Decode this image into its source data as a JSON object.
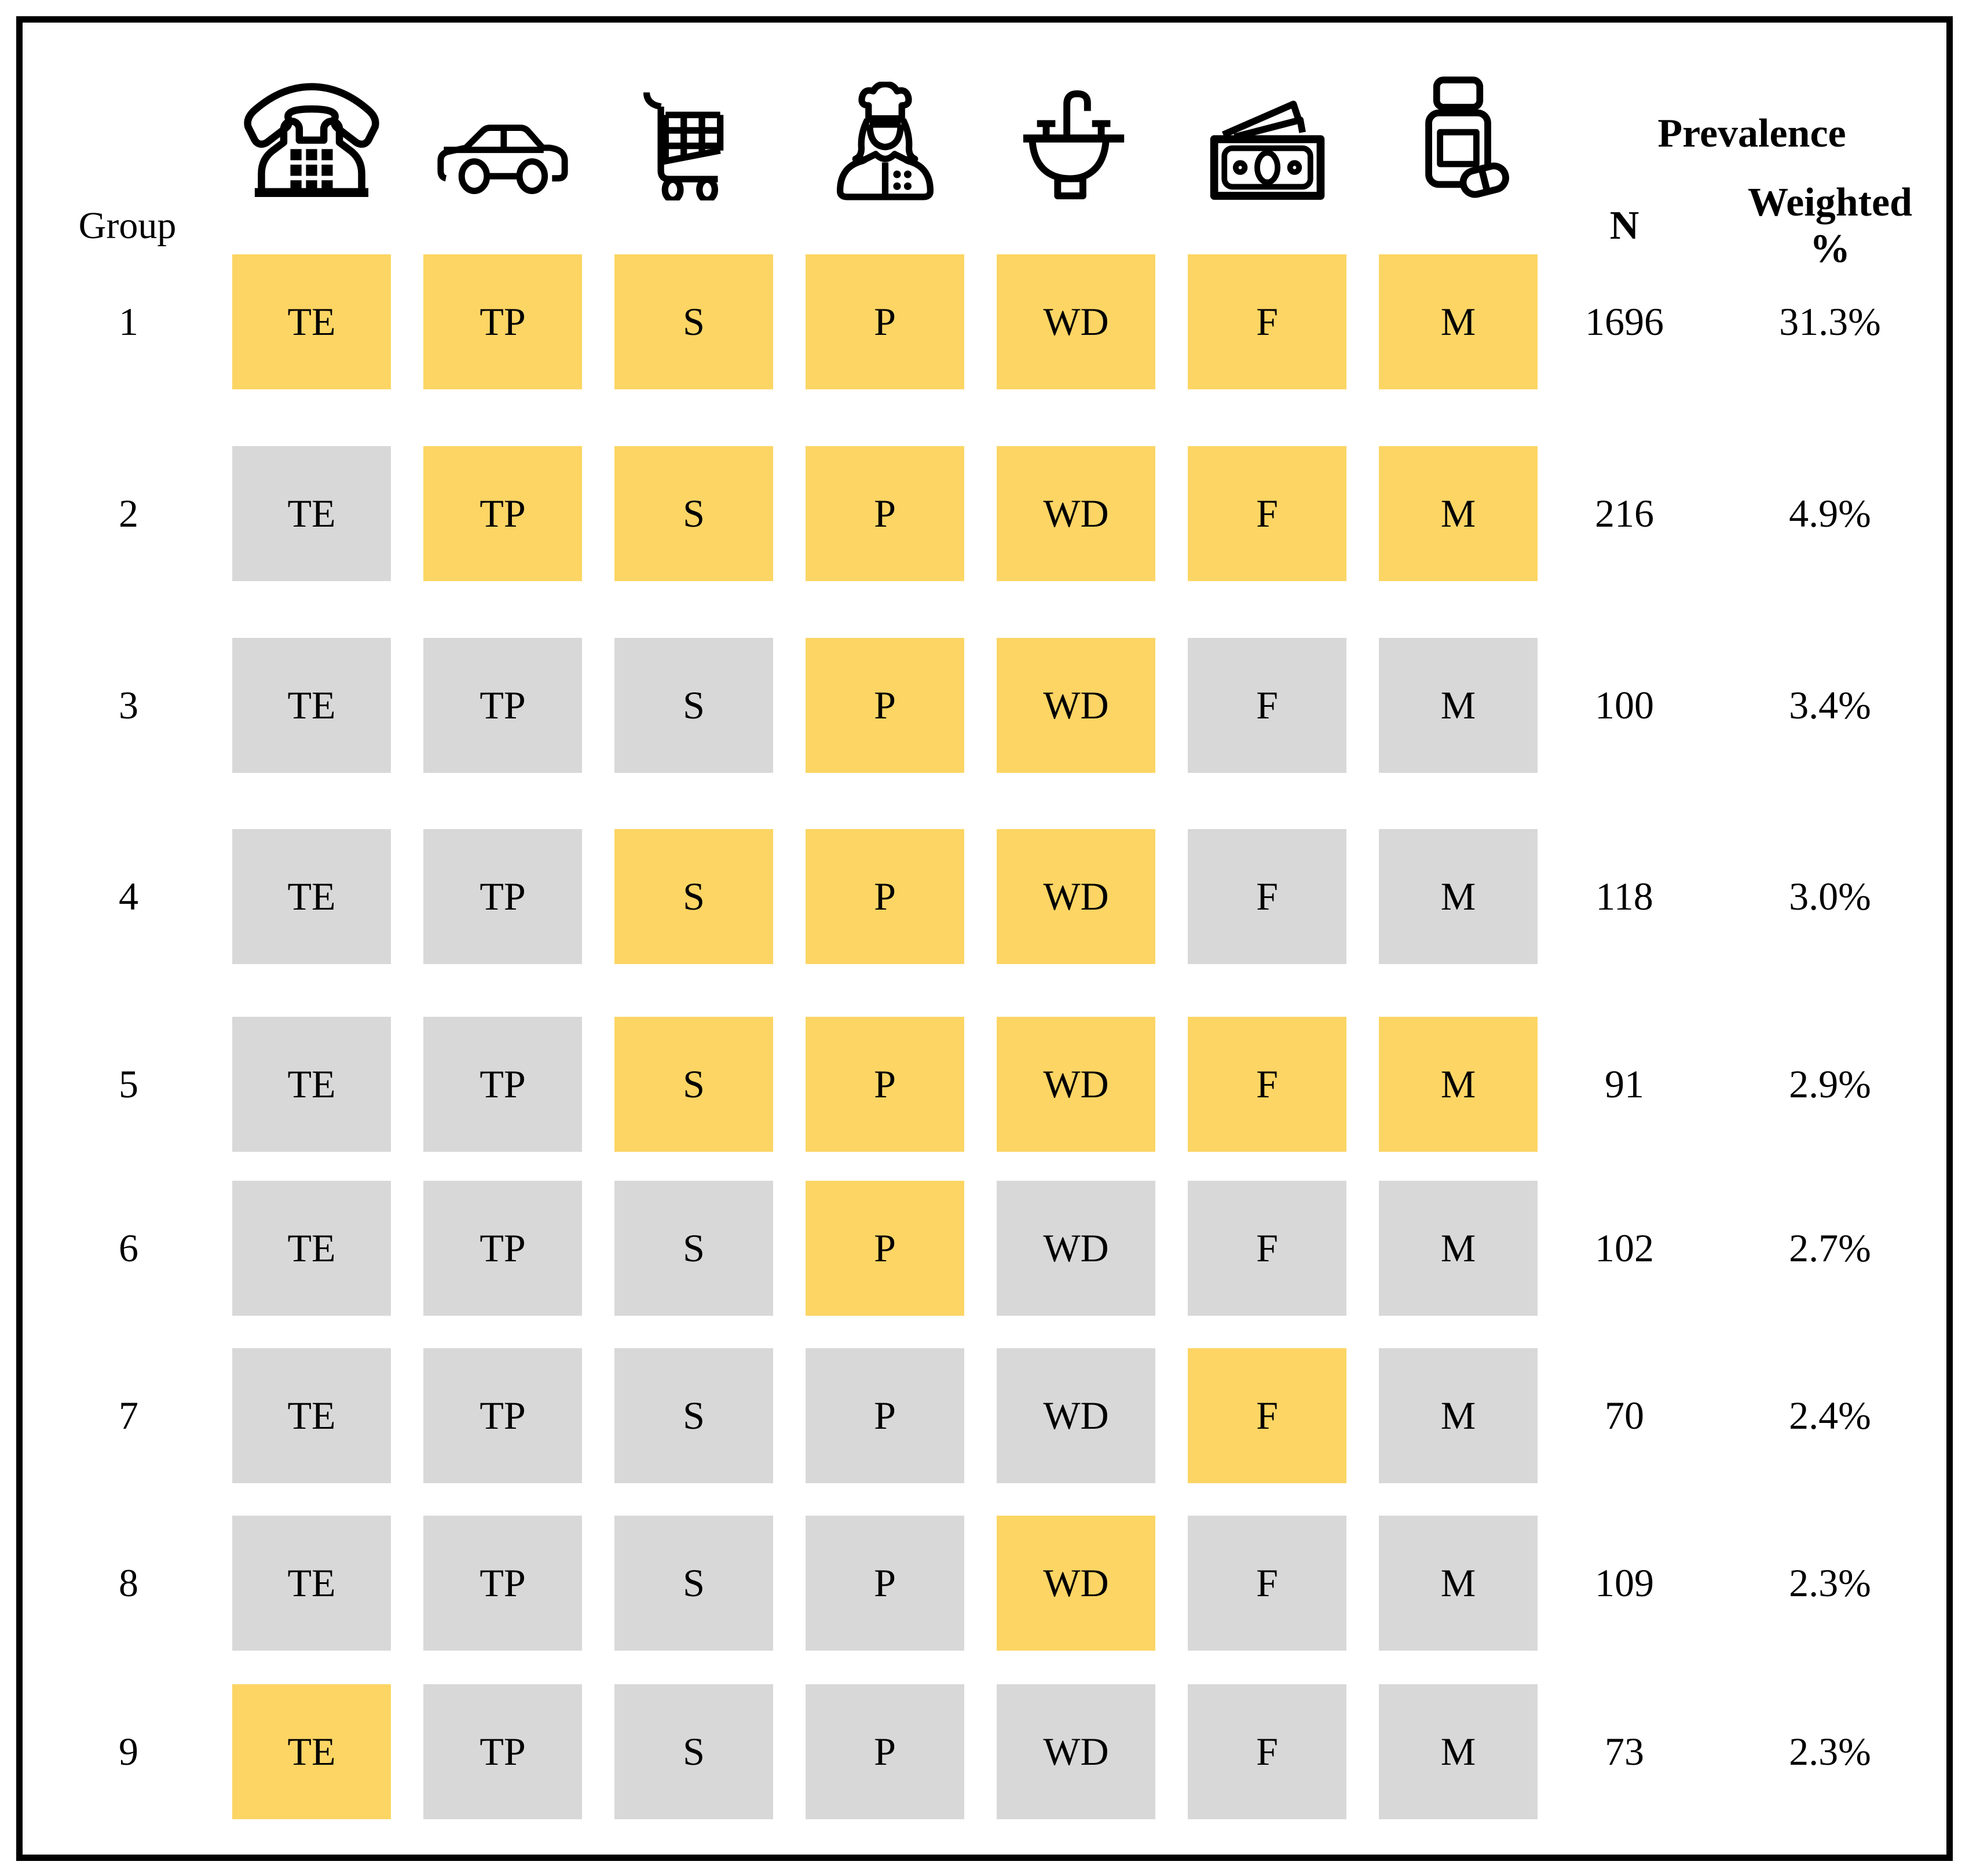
{
  "chart_data": {
    "type": "table",
    "description": "Latent group matrix: activity limitation indicators per group with prevalence",
    "group_label": "Group",
    "prevalence_label": "Prevalence",
    "n_label": "N",
    "weighted_label": "Weighted %",
    "columns": [
      {
        "code": "TE",
        "icon": "telephone-icon"
      },
      {
        "code": "TP",
        "icon": "car-icon"
      },
      {
        "code": "S",
        "icon": "shopping-cart-icon"
      },
      {
        "code": "P",
        "icon": "chef-person-icon"
      },
      {
        "code": "WD",
        "icon": "sink-icon"
      },
      {
        "code": "F",
        "icon": "money-icon"
      },
      {
        "code": "M",
        "icon": "medication-bottle-icon"
      }
    ],
    "rows": [
      {
        "group": "1",
        "active": [
          true,
          true,
          true,
          true,
          true,
          true,
          true
        ],
        "n": "1696",
        "weighted_pct": "31.3%"
      },
      {
        "group": "2",
        "active": [
          false,
          true,
          true,
          true,
          true,
          true,
          true
        ],
        "n": "216",
        "weighted_pct": "4.9%"
      },
      {
        "group": "3",
        "active": [
          false,
          false,
          false,
          true,
          true,
          false,
          false
        ],
        "n": "100",
        "weighted_pct": "3.4%"
      },
      {
        "group": "4",
        "active": [
          false,
          false,
          true,
          true,
          true,
          false,
          false
        ],
        "n": "118",
        "weighted_pct": "3.0%"
      },
      {
        "group": "5",
        "active": [
          false,
          false,
          true,
          true,
          true,
          true,
          true
        ],
        "n": "91",
        "weighted_pct": "2.9%"
      },
      {
        "group": "6",
        "active": [
          false,
          false,
          false,
          true,
          false,
          false,
          false
        ],
        "n": "102",
        "weighted_pct": "2.7%"
      },
      {
        "group": "7",
        "active": [
          false,
          false,
          false,
          false,
          false,
          true,
          false
        ],
        "n": "70",
        "weighted_pct": "2.4%"
      },
      {
        "group": "8",
        "active": [
          false,
          false,
          false,
          false,
          true,
          false,
          false
        ],
        "n": "109",
        "weighted_pct": "2.3%"
      },
      {
        "group": "9",
        "active": [
          true,
          false,
          false,
          false,
          false,
          false,
          false
        ],
        "n": "73",
        "weighted_pct": "2.3%"
      }
    ],
    "legend": {
      "active_color": "#FCD564",
      "inactive_color": "#D8D8D8",
      "border_color": "#000000"
    }
  }
}
